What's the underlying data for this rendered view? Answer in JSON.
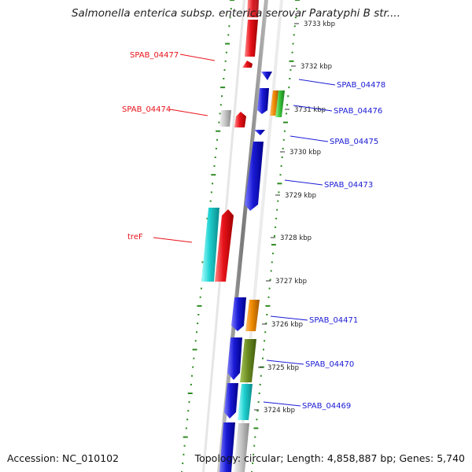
{
  "title": "Salmonella enterica subsp. enterica serovar Paratyphi B str....",
  "accession_label": "Accession:",
  "accession": "NC_010102",
  "topology_label": "Topology:",
  "topology": "circular",
  "length_label": "Length:",
  "length": "4,858,887 bp",
  "genes_label": "Genes:",
  "genes": "5,740",
  "kbp_ticks": [
    {
      "label": "3733 kbp",
      "value": 3733
    },
    {
      "label": "3732 kbp",
      "value": 3732
    },
    {
      "label": "3731 kbp",
      "value": 3731
    },
    {
      "label": "3730 kbp",
      "value": 3730
    },
    {
      "label": "3729 kbp",
      "value": 3729
    },
    {
      "label": "3728 kbp",
      "value": 3728
    },
    {
      "label": "3727 kbp",
      "value": 3727
    },
    {
      "label": "3726 kbp",
      "value": 3726
    },
    {
      "label": "3725 kbp",
      "value": 3725
    },
    {
      "label": "3724 kbp",
      "value": 3724
    }
  ],
  "gene_labels": [
    {
      "text": "SPAB_04477",
      "strand": "minus",
      "color": "#e8121a"
    },
    {
      "text": "SPAB_04474",
      "strand": "minus",
      "color": "#e8121a"
    },
    {
      "text": "treF",
      "strand": "minus",
      "color": "#e8121a"
    },
    {
      "text": "SPAB_04478",
      "strand": "plus",
      "color": "#1a1ad6"
    },
    {
      "text": "SPAB_04476",
      "strand": "plus",
      "color": "#1a1ad6"
    },
    {
      "text": "SPAB_04475",
      "strand": "plus",
      "color": "#1a1ad6"
    },
    {
      "text": "SPAB_04473",
      "strand": "plus",
      "color": "#1a1ad6"
    },
    {
      "text": "SPAB_04471",
      "strand": "plus",
      "color": "#1a1ad6"
    },
    {
      "text": "SPAB_04470",
      "strand": "plus",
      "color": "#1a1ad6"
    },
    {
      "text": "SPAB_04469",
      "strand": "plus",
      "color": "#1a1ad6"
    }
  ],
  "colors": {
    "forward_label": "#1a1ad6",
    "reverse_label": "#e8121a",
    "red_gene": "#e8121a",
    "blue_gene": "#1a1ad6",
    "cyan_gene": "#1fd0d0",
    "orange_gene": "#f08a00",
    "olive_gene": "#6e8e22",
    "green_gene": "#3cc83c",
    "gray_gene": "#c8c8c8",
    "backbone": "#8c8c8c",
    "gc_dots": "#2e8b22"
  }
}
